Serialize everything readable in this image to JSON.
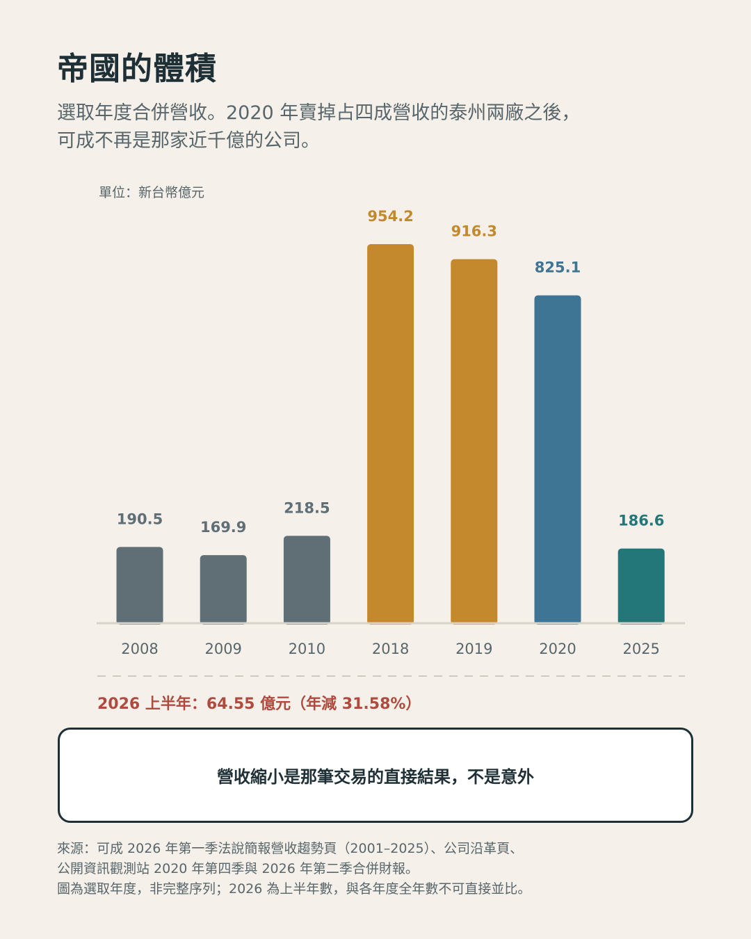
{
  "title": "帝國的體積",
  "subtitle": [
    "選取年度合併營收。2020 年賣掉占四成營收的泰州兩廠之後，",
    "可成不再是那家近千億的公司。"
  ],
  "unit_label": "單位：新台幣億元",
  "chart_data": {
    "type": "bar",
    "categories": [
      "2008",
      "2009",
      "2010",
      "2018",
      "2019",
      "2020",
      "2025"
    ],
    "values": [
      190.5,
      169.9,
      218.5,
      954.2,
      916.3,
      825.1,
      186.6
    ],
    "value_labels": [
      "190.5",
      "169.9",
      "218.5",
      "954.2",
      "916.3",
      "825.1",
      "186.6"
    ],
    "bar_colors": [
      "#5f6f75",
      "#5f6f75",
      "#5f6f75",
      "#c4892c",
      "#c4892c",
      "#3f7594",
      "#237779"
    ],
    "label_colors": [
      "#5f6f75",
      "#5f6f75",
      "#5f6f75",
      "#c4892c",
      "#c4892c",
      "#3f7594",
      "#237779"
    ],
    "ylim": [
      0,
      954.2
    ],
    "grid": false,
    "axis_color": "#d8d3c6"
  },
  "note_2026": "2026 上半年：64.55 億元（年減 31.58%）",
  "callout": "營收縮小是那筆交易的直接結果，不是意外",
  "source": [
    "來源：可成 2026 年第一季法說簡報營收趨勢頁（2001–2025）、公司沿革頁、",
    "公開資訊觀測站 2020 年第四季與 2026 年第二季合併財報。",
    "圖為選取年度，非完整序列；2026 為上半年數，與各年度全年數不可直接並比。"
  ]
}
